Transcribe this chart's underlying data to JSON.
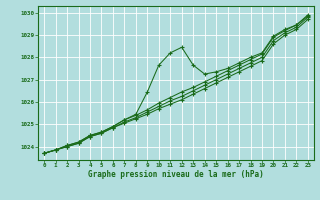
{
  "background_color": "#b2dede",
  "grid_color": "#c8e8e8",
  "line_color": "#1a6b1a",
  "title": "Graphe pression niveau de la mer (hPa)",
  "hours": [
    0,
    1,
    2,
    3,
    4,
    5,
    6,
    7,
    8,
    9,
    10,
    11,
    12,
    13,
    14,
    15,
    16,
    17,
    18,
    19,
    20,
    21,
    22,
    23
  ],
  "ylim": [
    1023.4,
    1030.3
  ],
  "yticks": [
    1024,
    1025,
    1026,
    1027,
    1028,
    1029,
    1030
  ],
  "lines": [
    [
      1023.7,
      1023.85,
      1024.0,
      1024.15,
      1024.45,
      1024.6,
      1024.85,
      1025.05,
      1025.25,
      1025.45,
      1025.7,
      1025.9,
      1026.1,
      1026.35,
      1026.6,
      1026.85,
      1027.1,
      1027.35,
      1027.6,
      1027.85,
      1028.6,
      1029.0,
      1029.25,
      1029.7
    ],
    [
      1023.7,
      1023.85,
      1024.0,
      1024.15,
      1024.45,
      1024.6,
      1024.85,
      1025.1,
      1025.3,
      1025.55,
      1025.8,
      1026.05,
      1026.25,
      1026.5,
      1026.75,
      1027.0,
      1027.25,
      1027.5,
      1027.75,
      1028.0,
      1028.75,
      1029.1,
      1029.35,
      1029.8
    ],
    [
      1023.7,
      1023.85,
      1024.05,
      1024.2,
      1024.5,
      1024.65,
      1024.9,
      1025.2,
      1025.4,
      1025.65,
      1025.95,
      1026.2,
      1026.45,
      1026.65,
      1026.9,
      1027.15,
      1027.4,
      1027.65,
      1027.9,
      1028.15,
      1028.9,
      1029.2,
      1029.45,
      1029.9
    ],
    [
      1023.7,
      1023.85,
      1024.05,
      1024.2,
      1024.5,
      1024.65,
      1024.9,
      1025.2,
      1025.45,
      1026.45,
      1027.65,
      1028.2,
      1028.45,
      1027.65,
      1027.25,
      1027.35,
      1027.5,
      1027.75,
      1028.0,
      1028.2,
      1028.95,
      1029.25,
      1029.45,
      1029.85
    ]
  ],
  "figsize": [
    3.2,
    2.0
  ],
  "dpi": 100
}
